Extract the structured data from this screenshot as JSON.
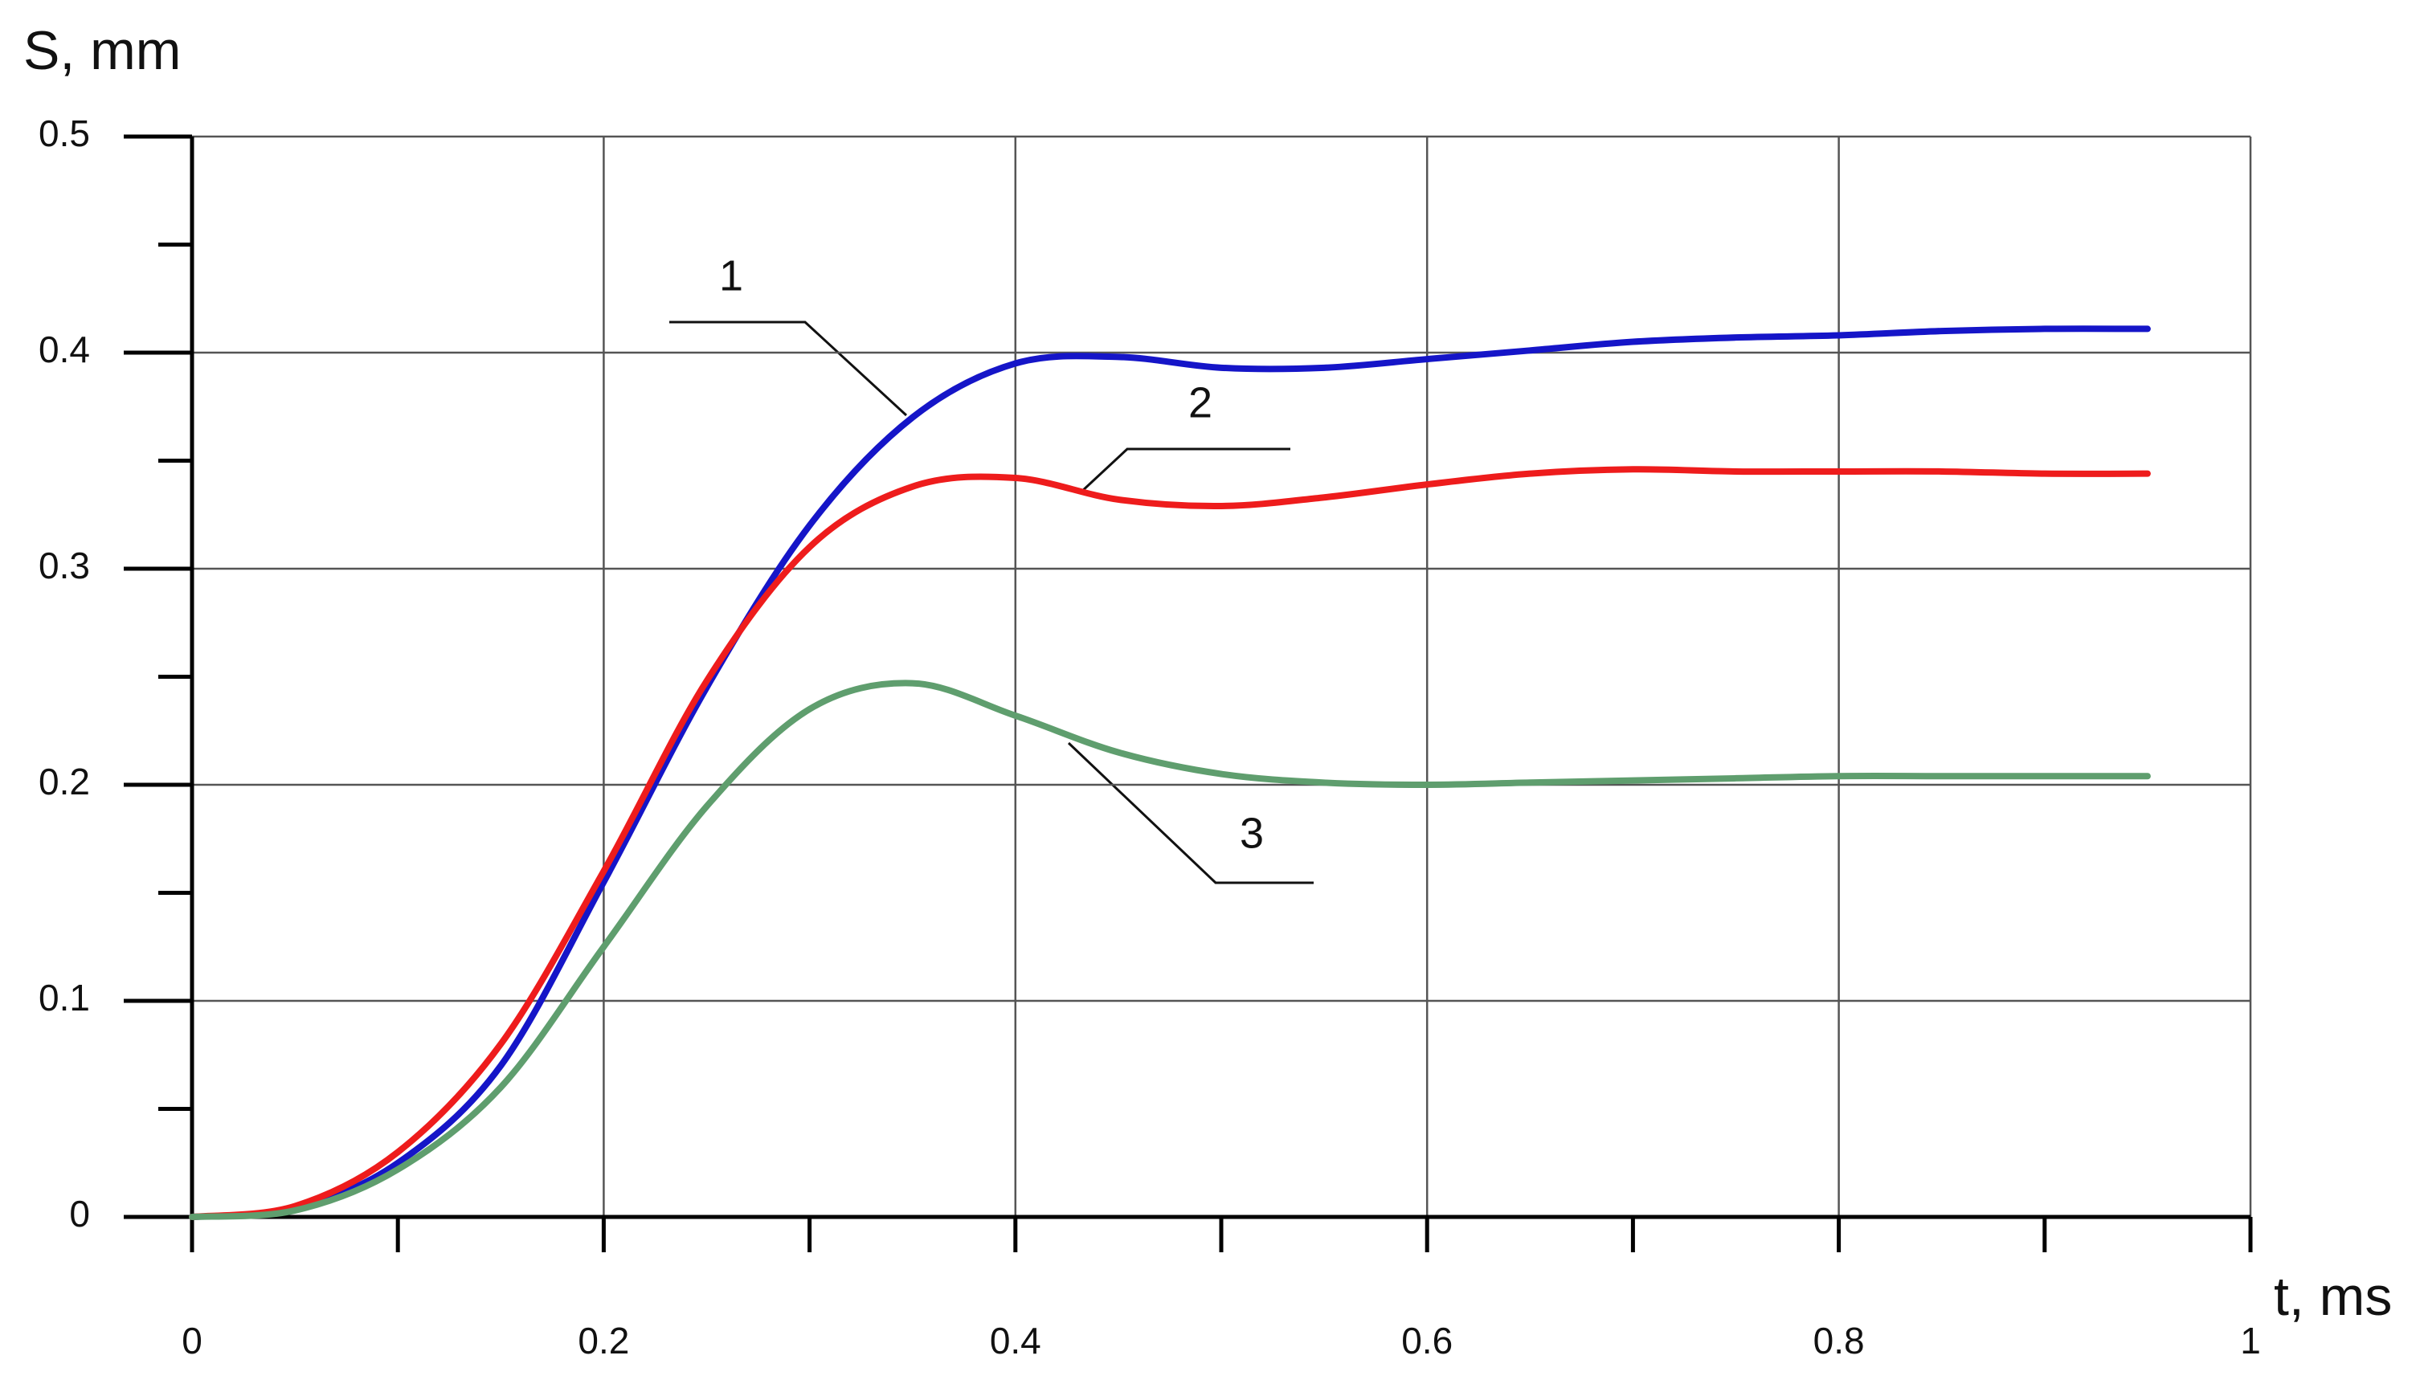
{
  "chart_data": {
    "type": "line",
    "x_label": "t, ms",
    "y_label": "S, mm",
    "x": [
      0,
      0.05,
      0.1,
      0.15,
      0.2,
      0.25,
      0.3,
      0.35,
      0.4,
      0.45,
      0.5,
      0.55,
      0.6,
      0.65,
      0.7,
      0.75,
      0.8,
      0.85,
      0.9,
      0.95
    ],
    "series": [
      {
        "name": "1",
        "color": "#1515c8",
        "values": [
          0,
          0.004,
          0.025,
          0.07,
          0.155,
          0.245,
          0.32,
          0.37,
          0.395,
          0.398,
          0.393,
          0.393,
          0.397,
          0.401,
          0.405,
          0.407,
          0.408,
          0.41,
          0.411,
          0.411
        ]
      },
      {
        "name": "2",
        "color": "#ee1c1c",
        "values": [
          0,
          0.005,
          0.03,
          0.08,
          0.16,
          0.248,
          0.31,
          0.338,
          0.342,
          0.332,
          0.329,
          0.333,
          0.339,
          0.344,
          0.346,
          0.345,
          0.345,
          0.345,
          0.344,
          0.344
        ]
      },
      {
        "name": "3",
        "color": "#5f9e6e",
        "values": [
          0,
          0.003,
          0.022,
          0.06,
          0.125,
          0.19,
          0.235,
          0.247,
          0.232,
          0.215,
          0.205,
          0.201,
          0.2,
          0.201,
          0.202,
          0.203,
          0.204,
          0.204,
          0.204,
          0.204
        ]
      }
    ],
    "xlim": [
      0,
      1
    ],
    "ylim": [
      0,
      0.5
    ],
    "xticks": [
      0,
      0.2,
      0.4,
      0.6,
      0.8,
      1
    ],
    "yticks": [
      0,
      0.1,
      0.2,
      0.3,
      0.4,
      0.5
    ],
    "xminor_ticks": [
      0.1,
      0.3,
      0.5,
      0.7,
      0.9
    ],
    "yminor_ticks": [
      0.05,
      0.15,
      0.25,
      0.35,
      0.45
    ],
    "grid": true
  }
}
